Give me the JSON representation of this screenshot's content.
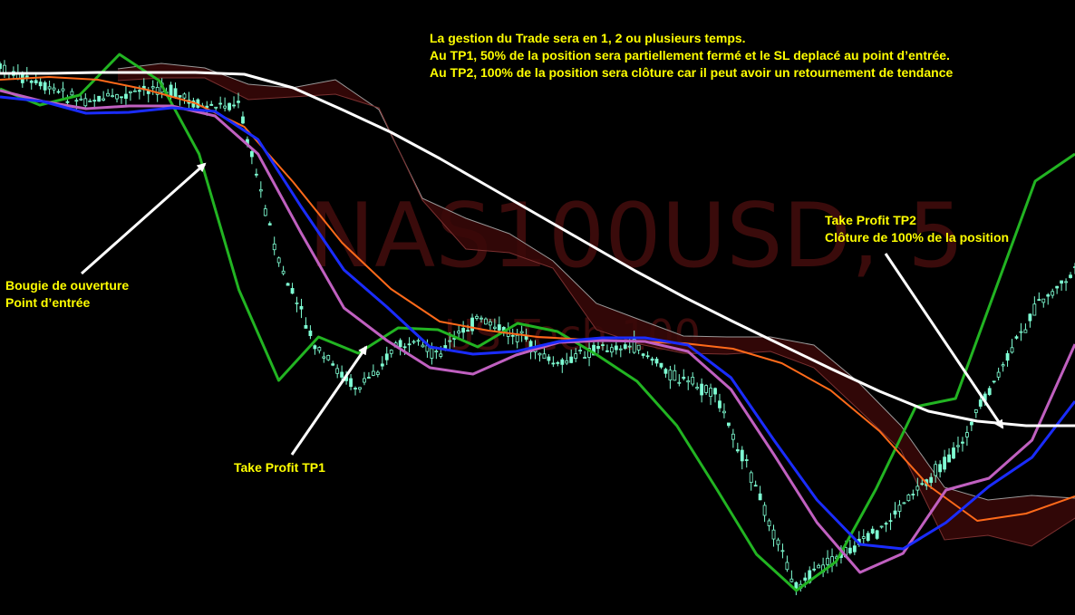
{
  "watermark": {
    "symbol": "NAS100USD, 5",
    "description": "US Tech 100"
  },
  "annotations": {
    "trade_management": "La gestion du Trade sera en 1, 2 ou plusieurs temps.\nAu TP1, 50% de la position sera partiellement  fermé et le SL deplacé au point d’entrée.\nAu TP2, 100% de la position sera clôture car il peut avoir un retournement de tendance",
    "entry": "Bougie de ouverture\nPoint d’entrée",
    "tp1": "Take Profit TP1",
    "tp2": "Take Profit TP2\nClôture de 100% de la position"
  },
  "colors": {
    "background": "#000000",
    "candle": "#7fffd4",
    "tenkan": "#c060c0",
    "kijun": "#1a2cff",
    "chikou": "#22b422",
    "ma_orange": "#ff6a1a",
    "ma_white": "#ffffff",
    "cloud_bear": "#3a0808",
    "cloud_bull": "#8a8a8a",
    "annotation_text": "#ffff00",
    "arrow": "#ffffff"
  },
  "chart_data": {
    "type": "line",
    "series": [
      {
        "key": "white_ma",
        "values": [
          81,
          81,
          80,
          80,
          80,
          82,
          97,
          121,
          146,
          175,
          206,
          237,
          268,
          299,
          328,
          355,
          381,
          407,
          432,
          454,
          465,
          470,
          470
        ]
      },
      {
        "key": "orange_ma",
        "values": [
          88,
          85,
          88,
          99,
          114,
          140,
          201,
          268,
          319,
          355,
          365,
          372,
          375,
          377,
          379,
          385,
          401,
          431,
          476,
          536,
          575,
          567,
          548
        ]
      },
      {
        "key": "kijun",
        "values": [
          107,
          112,
          125,
          124,
          119,
          123,
          154,
          228,
          298,
          339,
          383,
          391,
          388,
          377,
          373,
          373,
          381,
          417,
          486,
          552,
          601,
          606,
          577,
          537,
          505,
          443
        ]
      },
      {
        "key": "tenkan",
        "values": [
          100,
          112,
          120,
          117,
          117,
          128,
          170,
          257,
          340,
          376,
          406,
          413,
          392,
          378,
          376,
          377,
          388,
          430,
          502,
          577,
          632,
          611,
          541,
          528,
          486,
          380
        ]
      },
      {
        "key": "chikou",
        "values": [
          98,
          116,
          105,
          60,
          89,
          170,
          320,
          420,
          372,
          390,
          362,
          364,
          383,
          357,
          366,
          392,
          421,
          470,
          540,
          612,
          652,
          620,
          540,
          449,
          440,
          320,
          200,
          170
        ]
      },
      {
        "key": "cloud_top",
        "values": [
          76,
          70,
          75,
          93,
          97,
          88,
          121,
          219,
          241,
          258,
          288,
          335,
          353,
          371,
          372,
          372,
          381,
          421,
          470,
          538,
          552,
          547,
          550
        ]
      },
      {
        "key": "cloud_bottom",
        "values": [
          89,
          86,
          86,
          110,
          107,
          104,
          119,
          221,
          275,
          279,
          296,
          364,
          380,
          390,
          391,
          388,
          406,
          451,
          497,
          596,
          591,
          603,
          572
        ]
      },
      {
        "key": "price",
        "values": [
          75,
          95,
          110,
          108,
          95,
          118,
          115,
          290,
          390,
          430,
          380,
          390,
          352,
          372,
          404,
          384,
          383,
          418,
          437,
          540,
          648,
          617,
          590,
          541,
          500,
          420,
          340,
          300
        ]
      }
    ]
  }
}
